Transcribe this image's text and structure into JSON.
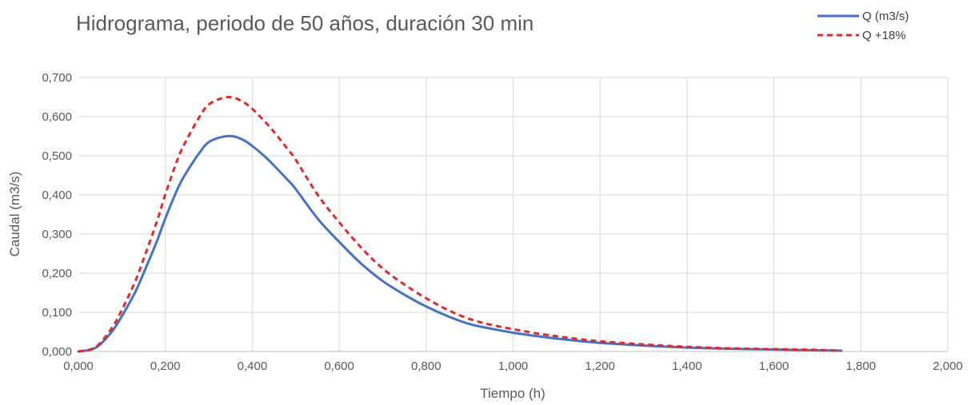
{
  "chart_data": {
    "type": "line",
    "title": "Hidrograma, periodo de 50 años, duración 30 min",
    "xlabel": "Tiempo (h)",
    "ylabel": "Caudal (m3/s)",
    "xlim": [
      0,
      2
    ],
    "ylim": [
      0,
      0.7
    ],
    "x_ticks": [
      "0,000",
      "0,200",
      "0,400",
      "0,600",
      "0,800",
      "1,000",
      "1,200",
      "1,400",
      "1,600",
      "1,800",
      "2,000"
    ],
    "y_ticks": [
      "0,000",
      "0,100",
      "0,200",
      "0,300",
      "0,400",
      "0,500",
      "0,600",
      "0,700"
    ],
    "grid": "vertical and horizontal",
    "legend_position": "top-right",
    "series": [
      {
        "name": "Q (m3/s)",
        "color": "#4472c4",
        "style": "solid",
        "x": [
          0,
          0.03,
          0.05,
          0.08,
          0.1,
          0.13,
          0.15,
          0.18,
          0.2,
          0.23,
          0.25,
          0.28,
          0.3,
          0.33,
          0.355,
          0.38,
          0.4,
          0.43,
          0.45,
          0.48,
          0.5,
          0.55,
          0.6,
          0.65,
          0.7,
          0.75,
          0.8,
          0.85,
          0.9,
          0.95,
          1.0,
          1.05,
          1.1,
          1.15,
          1.2,
          1.3,
          1.4,
          1.5,
          1.6,
          1.7,
          1.755
        ],
        "y": [
          0,
          0.005,
          0.018,
          0.055,
          0.09,
          0.15,
          0.2,
          0.28,
          0.34,
          0.42,
          0.46,
          0.51,
          0.535,
          0.548,
          0.55,
          0.54,
          0.525,
          0.497,
          0.475,
          0.44,
          0.415,
          0.34,
          0.28,
          0.225,
          0.18,
          0.145,
          0.115,
          0.09,
          0.07,
          0.058,
          0.048,
          0.04,
          0.033,
          0.027,
          0.022,
          0.015,
          0.01,
          0.007,
          0.005,
          0.003,
          0.002
        ]
      },
      {
        "name": "Q +18%",
        "color": "#e02b2b",
        "style": "dashed",
        "x": [
          0,
          0.03,
          0.05,
          0.08,
          0.1,
          0.13,
          0.15,
          0.18,
          0.2,
          0.23,
          0.25,
          0.28,
          0.3,
          0.33,
          0.355,
          0.38,
          0.4,
          0.43,
          0.45,
          0.48,
          0.5,
          0.55,
          0.6,
          0.65,
          0.7,
          0.75,
          0.8,
          0.85,
          0.9,
          0.95,
          1.0,
          1.05,
          1.1,
          1.15,
          1.2,
          1.3,
          1.4,
          1.5,
          1.6,
          1.7,
          1.755
        ],
        "y": [
          0,
          0.006,
          0.021,
          0.065,
          0.106,
          0.177,
          0.236,
          0.33,
          0.401,
          0.496,
          0.543,
          0.602,
          0.631,
          0.647,
          0.649,
          0.637,
          0.62,
          0.586,
          0.561,
          0.519,
          0.49,
          0.401,
          0.33,
          0.266,
          0.212,
          0.171,
          0.136,
          0.106,
          0.083,
          0.068,
          0.057,
          0.047,
          0.039,
          0.032,
          0.026,
          0.018,
          0.012,
          0.008,
          0.006,
          0.004,
          0.002
        ]
      }
    ]
  }
}
